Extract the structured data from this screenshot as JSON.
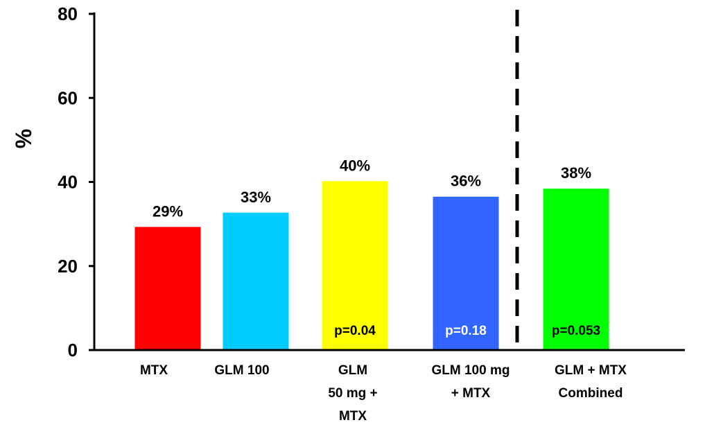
{
  "chart_data": {
    "type": "bar",
    "title": "",
    "xlabel": "",
    "ylabel": "%",
    "ylim": [
      0,
      80
    ],
    "yticks": [
      "0",
      "20",
      "40",
      "60",
      "80"
    ],
    "grid": false,
    "categories": [
      [
        "MTX"
      ],
      [
        "GLM 100"
      ],
      [
        "GLM",
        "50 mg +",
        "MTX"
      ],
      [
        "GLM 100 mg",
        "+ MTX"
      ],
      [
        "GLM + MTX",
        "Combined"
      ]
    ],
    "values": [
      29.3,
      32.7,
      40.2,
      36.5,
      38.4
    ],
    "value_labels": [
      "29%",
      "33%",
      "40%",
      "36%",
      "38%"
    ],
    "pvalue_labels": [
      "",
      "",
      "p=0.04",
      "p=0.18",
      "p=0.053"
    ],
    "colors": [
      "#ff0000",
      "#00ccff",
      "#ffff00",
      "#3366ff",
      "#00ff00"
    ],
    "pvalue_colors": [
      "#000000",
      "#000000",
      "#000000",
      "#ffffff",
      "#000000"
    ],
    "separator": {
      "style": "dashed",
      "between": [
        "GLM 100 mg\n+ MTX",
        "GLM + MTX\nCombined"
      ]
    }
  }
}
